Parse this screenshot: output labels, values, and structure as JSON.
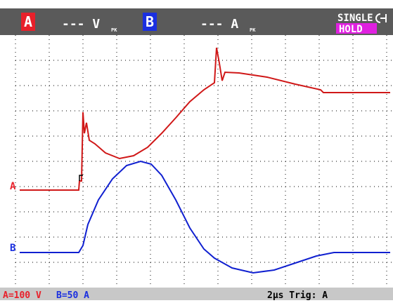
{
  "header": {
    "channel_a": "A",
    "reading_a": "--- V",
    "reading_a_sub": "PK",
    "channel_b": "B",
    "reading_b": "--- A",
    "reading_b_sub": "PK",
    "mode": "SINGLE",
    "status": "HOLD"
  },
  "markers": {
    "a": "A",
    "b": "B"
  },
  "footer": {
    "scale_a": "A=100 V",
    "scale_b": "B=50 A",
    "timebase": "2µs Trig: A"
  }
}
